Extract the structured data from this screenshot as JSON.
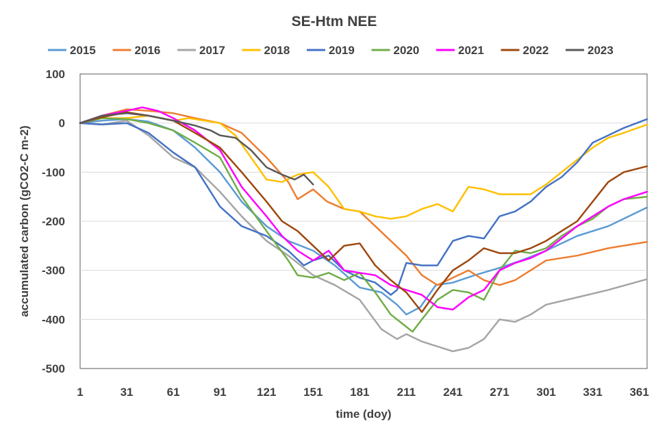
{
  "chart_data": {
    "type": "line",
    "title": "SE-Htm NEE",
    "xlabel": "time (doy)",
    "ylabel": "accumulated carbon  (gCO2-C m-2)",
    "xlim": [
      1,
      366
    ],
    "ylim": [
      -500,
      100
    ],
    "x_ticks": [
      1,
      31,
      61,
      91,
      121,
      151,
      181,
      211,
      241,
      271,
      301,
      331,
      361
    ],
    "y_ticks": [
      100,
      0,
      -100,
      -200,
      -300,
      -400,
      -500
    ],
    "x_tick_labels": [
      "1",
      "31",
      "61",
      "91",
      "121",
      "151",
      "181",
      "211",
      "241",
      "271",
      "301",
      "331",
      "361"
    ],
    "y_tick_labels": [
      "100",
      "0",
      "-100",
      "-200",
      "-300",
      "-400",
      "-500"
    ],
    "grid": "horizontal",
    "legend_position": "top",
    "series": [
      {
        "name": "2015",
        "color": "#5B9BD5",
        "x": [
          1,
          15,
          31,
          45,
          61,
          75,
          91,
          105,
          121,
          135,
          151,
          165,
          181,
          195,
          205,
          211,
          220,
          230,
          241,
          255,
          271,
          285,
          301,
          321,
          341,
          366
        ],
        "y": [
          0,
          5,
          8,
          3,
          -15,
          -50,
          -100,
          -160,
          -210,
          -240,
          -260,
          -290,
          -335,
          -345,
          -370,
          -390,
          -375,
          -330,
          -325,
          -310,
          -295,
          -280,
          -260,
          -230,
          -210,
          -172
        ]
      },
      {
        "name": "2016",
        "color": "#ED7D31",
        "x": [
          1,
          15,
          31,
          45,
          61,
          75,
          91,
          105,
          121,
          135,
          141,
          151,
          160,
          171,
          181,
          191,
          201,
          211,
          221,
          231,
          241,
          251,
          261,
          271,
          281,
          291,
          301,
          321,
          341,
          366
        ],
        "y": [
          0,
          15,
          28,
          25,
          20,
          10,
          0,
          -20,
          -70,
          -120,
          -155,
          -135,
          -160,
          -175,
          -180,
          -210,
          -240,
          -270,
          -310,
          -330,
          -315,
          -300,
          -320,
          -330,
          -320,
          -300,
          -280,
          -270,
          -255,
          -242
        ]
      },
      {
        "name": "2017",
        "color": "#A5A5A5",
        "x": [
          1,
          15,
          31,
          45,
          61,
          75,
          91,
          105,
          121,
          135,
          151,
          165,
          181,
          195,
          205,
          211,
          221,
          231,
          241,
          251,
          261,
          271,
          281,
          291,
          301,
          321,
          341,
          366
        ],
        "y": [
          0,
          -3,
          5,
          -25,
          -70,
          -90,
          -140,
          -190,
          -240,
          -270,
          -310,
          -330,
          -360,
          -420,
          -440,
          -430,
          -445,
          -455,
          -465,
          -458,
          -440,
          -400,
          -405,
          -390,
          -370,
          -355,
          -340,
          -318
        ]
      },
      {
        "name": "2018",
        "color": "#FFC000",
        "x": [
          1,
          15,
          31,
          45,
          61,
          71,
          81,
          91,
          101,
          111,
          121,
          131,
          141,
          151,
          161,
          171,
          181,
          191,
          201,
          211,
          221,
          231,
          241,
          251,
          261,
          271,
          281,
          291,
          301,
          311,
          321,
          331,
          341,
          351,
          366
        ],
        "y": [
          0,
          10,
          10,
          15,
          5,
          10,
          5,
          0,
          -25,
          -70,
          -115,
          -120,
          -105,
          -100,
          -130,
          -175,
          -180,
          -190,
          -195,
          -190,
          -175,
          -165,
          -180,
          -130,
          -135,
          -145,
          -145,
          -145,
          -125,
          -100,
          -75,
          -50,
          -30,
          -20,
          -3
        ]
      },
      {
        "name": "2019",
        "color": "#4472C4",
        "x": [
          1,
          15,
          31,
          45,
          61,
          75,
          91,
          105,
          121,
          135,
          145,
          151,
          161,
          171,
          181,
          191,
          201,
          205,
          211,
          221,
          231,
          241,
          251,
          261,
          271,
          281,
          291,
          301,
          311,
          321,
          331,
          341,
          351,
          366
        ],
        "y": [
          0,
          -3,
          0,
          -20,
          -60,
          -90,
          -170,
          -210,
          -230,
          -260,
          -290,
          -280,
          -270,
          -300,
          -315,
          -325,
          -350,
          -340,
          -285,
          -290,
          -290,
          -240,
          -230,
          -235,
          -190,
          -180,
          -160,
          -130,
          -110,
          -80,
          -40,
          -25,
          -10,
          8
        ]
      },
      {
        "name": "2020",
        "color": "#70AD47",
        "x": [
          1,
          15,
          31,
          45,
          61,
          75,
          91,
          105,
          121,
          135,
          141,
          151,
          161,
          171,
          181,
          191,
          201,
          211,
          215,
          221,
          231,
          241,
          251,
          261,
          271,
          281,
          291,
          301,
          311,
          321,
          331,
          341,
          351,
          366
        ],
        "y": [
          0,
          10,
          8,
          0,
          -15,
          -40,
          -70,
          -150,
          -220,
          -280,
          -310,
          -315,
          -305,
          -320,
          -305,
          -345,
          -390,
          -415,
          -425,
          -400,
          -360,
          -340,
          -345,
          -360,
          -300,
          -260,
          -265,
          -255,
          -230,
          -210,
          -195,
          -170,
          -155,
          -150
        ]
      },
      {
        "name": "2021",
        "color": "#FF00FF",
        "x": [
          1,
          15,
          31,
          41,
          51,
          61,
          75,
          91,
          105,
          121,
          131,
          141,
          151,
          161,
          171,
          181,
          191,
          201,
          211,
          221,
          231,
          241,
          251,
          261,
          271,
          281,
          291,
          301,
          311,
          321,
          331,
          341,
          351,
          366
        ],
        "y": [
          0,
          15,
          25,
          32,
          25,
          10,
          -15,
          -55,
          -130,
          -190,
          -230,
          -260,
          -280,
          -260,
          -300,
          -305,
          -310,
          -330,
          -340,
          -350,
          -375,
          -380,
          -355,
          -340,
          -300,
          -285,
          -275,
          -260,
          -235,
          -210,
          -190,
          -170,
          -155,
          -140
        ]
      },
      {
        "name": "2022",
        "color": "#9E480E",
        "x": [
          1,
          15,
          31,
          45,
          61,
          75,
          91,
          105,
          121,
          131,
          141,
          151,
          161,
          171,
          181,
          191,
          201,
          211,
          221,
          231,
          241,
          251,
          261,
          271,
          281,
          291,
          301,
          311,
          321,
          331,
          341,
          351,
          366
        ],
        "y": [
          0,
          12,
          22,
          15,
          5,
          -20,
          -50,
          -100,
          -160,
          -200,
          -220,
          -250,
          -280,
          -250,
          -245,
          -290,
          -320,
          -345,
          -385,
          -340,
          -300,
          -280,
          -255,
          -265,
          -265,
          -255,
          -240,
          -220,
          -200,
          -160,
          -120,
          -100,
          -88
        ]
      },
      {
        "name": "2023",
        "color": "#595959",
        "x": [
          1,
          15,
          31,
          45,
          61,
          75,
          85,
          91,
          101,
          111,
          121,
          131,
          139,
          145,
          151
        ],
        "y": [
          0,
          15,
          20,
          15,
          5,
          -5,
          -15,
          -25,
          -30,
          -55,
          -90,
          -105,
          -115,
          -105,
          -125
        ]
      }
    ]
  }
}
